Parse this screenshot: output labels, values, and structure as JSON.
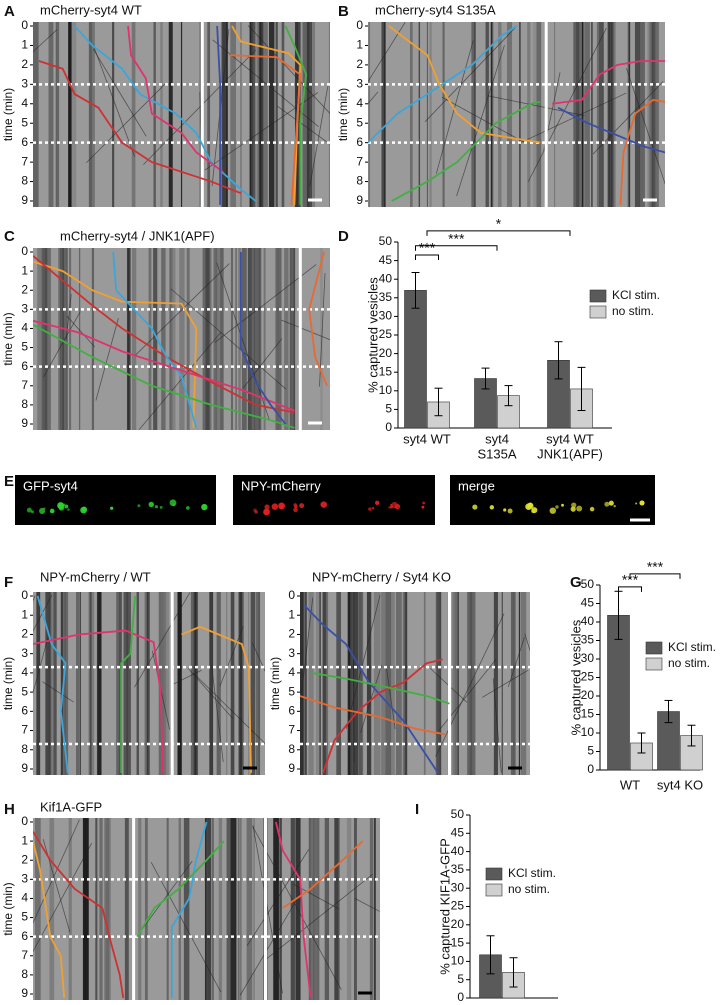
{
  "panels": {
    "letters": [
      "A",
      "B",
      "C",
      "D",
      "E",
      "F",
      "G",
      "H",
      "I"
    ]
  },
  "kymographs": [
    {
      "title": "mCherry-syt4 WT",
      "ylabel": "time (min)",
      "yticks": [
        0,
        1,
        2,
        3,
        4,
        5,
        6,
        7,
        8,
        9
      ]
    },
    {
      "title": "mCherry-syt4 S135A",
      "ylabel": "time (min)",
      "yticks": [
        0,
        1,
        2,
        3,
        4,
        5,
        6,
        7,
        8,
        9
      ]
    },
    {
      "title": "mCherry-syt4 / JNK1(APF)",
      "ylabel": "time (min)",
      "yticks": [
        0,
        1,
        2,
        3,
        4,
        5,
        6,
        7,
        8,
        9
      ]
    },
    {
      "title": "NPY-mCherry / WT",
      "ylabel": "time (min)",
      "yticks": [
        0,
        1,
        2,
        3,
        4,
        5,
        6,
        7,
        8,
        9
      ]
    },
    {
      "title": "NPY-mCherry / Syt4 KO",
      "ylabel": "time (min)",
      "yticks": [
        0,
        1,
        2,
        3,
        4,
        5,
        6,
        7,
        8,
        9
      ]
    },
    {
      "title": "Kif1A-GFP",
      "ylabel": "time (min)",
      "yticks": [
        0,
        1,
        2,
        3,
        4,
        5,
        6,
        7,
        8,
        9
      ]
    }
  ],
  "images": {
    "labels": [
      "GFP-syt4",
      "NPY-mCherry",
      "merge"
    ]
  },
  "chart_data": [
    {
      "type": "bar",
      "ylabel": "% captured vesicles",
      "categories": [
        [
          "syt4 WT"
        ],
        [
          "syt4",
          "S135A"
        ],
        [
          "syt4 WT",
          "JNK1(APF)"
        ]
      ],
      "series": [
        {
          "name": "KCl stim.",
          "color": "#5a5a5a",
          "values": [
            37,
            13.3,
            18.2
          ],
          "errors": [
            4.8,
            2.8,
            5
          ]
        },
        {
          "name": "no stim.",
          "color": "#d0d0d0",
          "values": [
            7,
            8.7,
            10.5
          ],
          "errors": [
            3.7,
            2.7,
            5.8
          ]
        }
      ],
      "ylim": [
        0,
        50
      ],
      "yticks": [
        0,
        5,
        10,
        15,
        20,
        25,
        30,
        35,
        40,
        45,
        50
      ],
      "annotations": [
        "***",
        "***",
        "*"
      ]
    },
    {
      "type": "bar",
      "ylabel": "% captured vesicles",
      "categories": [
        [
          "WT"
        ],
        [
          "syt4 KO"
        ]
      ],
      "series": [
        {
          "name": "KCl stim.",
          "color": "#5a5a5a",
          "values": [
            41.8,
            15.8
          ],
          "errors": [
            6.5,
            3
          ]
        },
        {
          "name": "no stim.",
          "color": "#d0d0d0",
          "values": [
            7.3,
            9.3
          ],
          "errors": [
            2.7,
            2.8
          ]
        }
      ],
      "ylim": [
        0,
        50
      ],
      "yticks": [
        0,
        5,
        10,
        15,
        20,
        25,
        30,
        35,
        40,
        45,
        50
      ],
      "annotations": [
        "***",
        "***"
      ]
    },
    {
      "type": "bar",
      "ylabel": "% captured KIF1A-GFP",
      "categories": [
        null
      ],
      "series": [
        {
          "name": "KCl stim.",
          "color": "#5a5a5a",
          "values": [
            11.8
          ],
          "errors": [
            5.2
          ]
        },
        {
          "name": "no stim.",
          "color": "#d0d0d0",
          "values": [
            7
          ],
          "errors": [
            4
          ]
        }
      ],
      "ylim": [
        0,
        50
      ],
      "yticks": [
        0,
        5,
        10,
        15,
        20,
        25,
        30,
        35,
        40,
        45,
        50
      ],
      "annotations": []
    }
  ]
}
